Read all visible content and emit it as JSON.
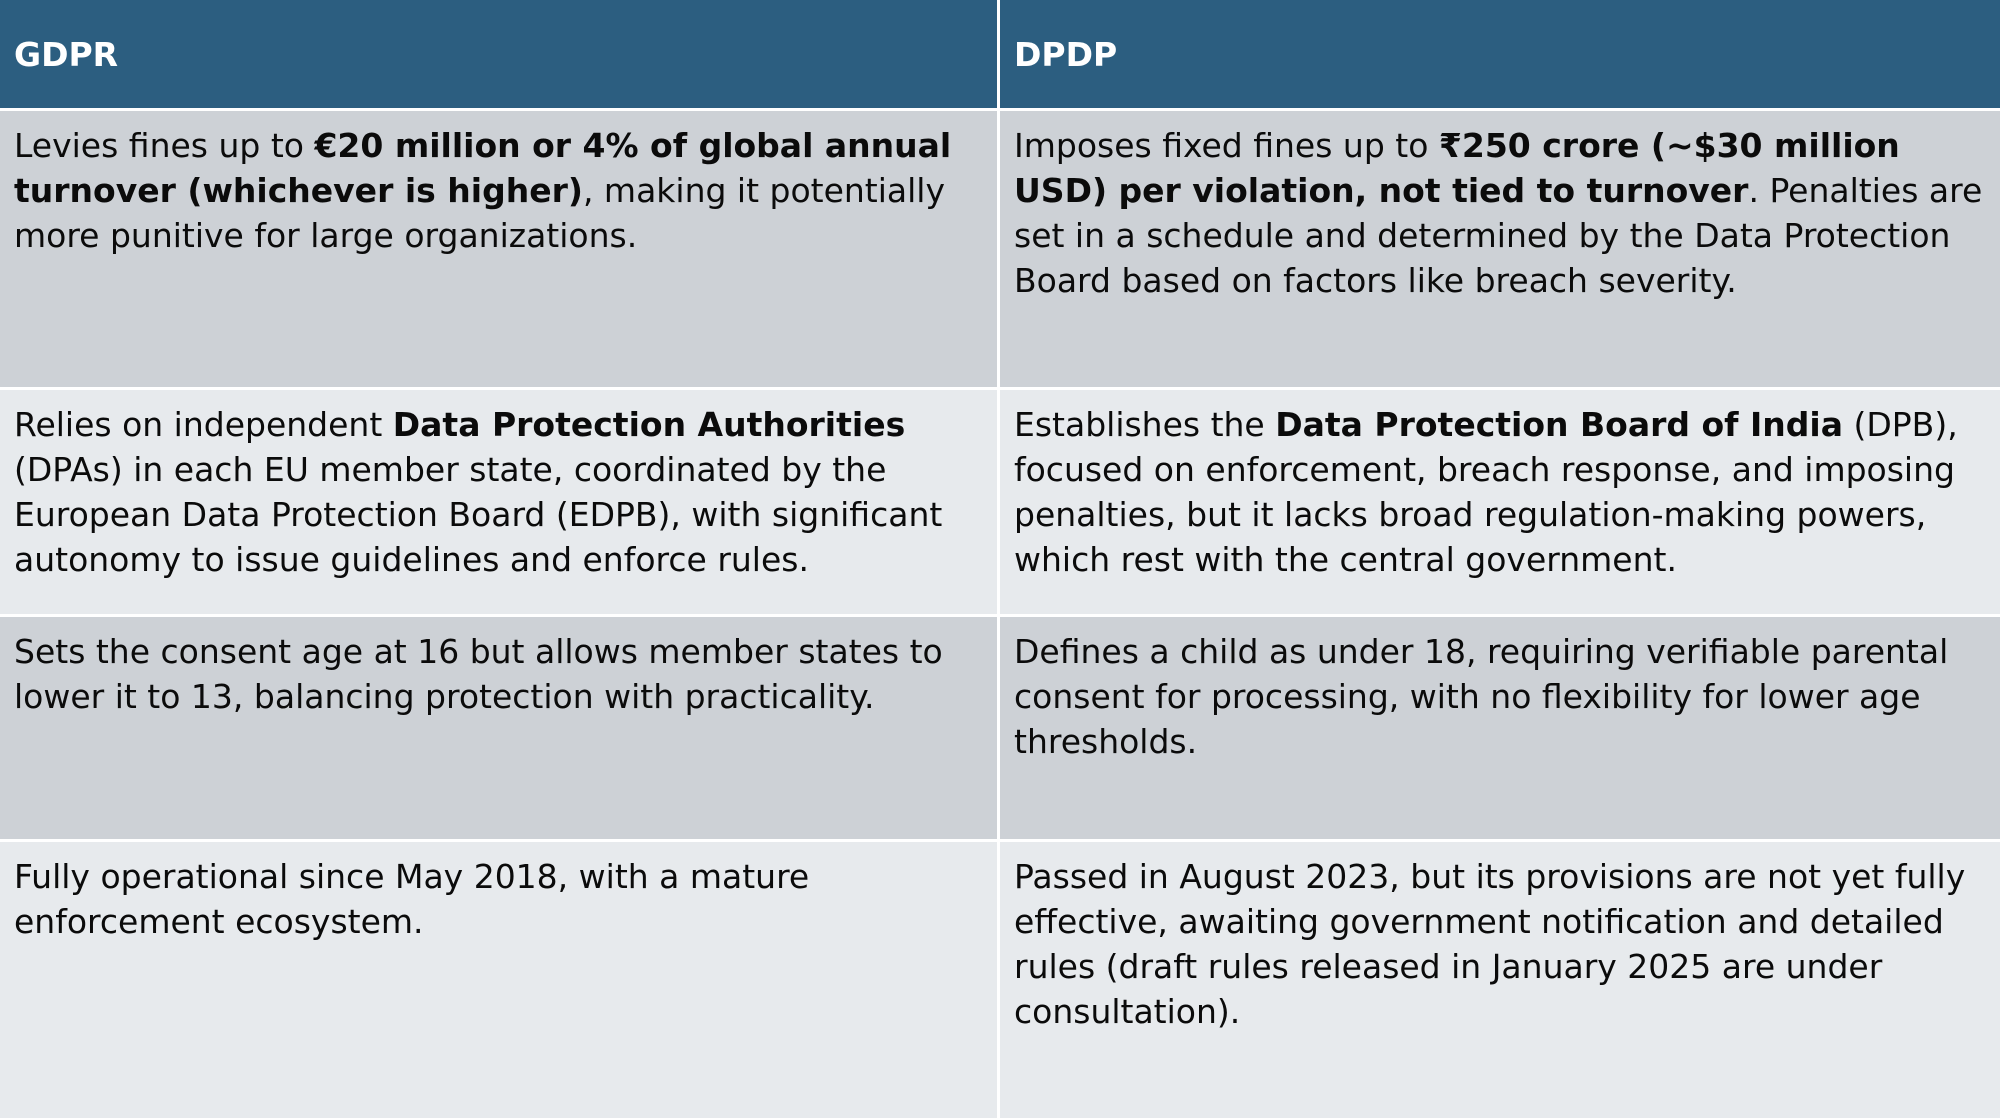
{
  "headers": {
    "gdpr": "GDPR",
    "dpdp": "DPDP"
  },
  "rows": [
    {
      "gdpr": {
        "s1": "Levies fines up to ",
        "b1": "€20 million or 4% of global annual turnover (whichever is higher)",
        "s2": ", making it potentially more punitive for large organizations."
      },
      "dpdp": {
        "s1": "Imposes fixed fines up to ",
        "b1": "₹250 crore (~$30 million USD) per violation, not tied to turnover",
        "s2": ". Penalties are set in a schedule and determined by the Data Protection Board based on factors like breach severity."
      }
    },
    {
      "gdpr": {
        "s1": "Relies on independent ",
        "b1": "Data Protection Authorities",
        "s2": " (DPAs) in each EU member state, coordinated by the European Data Protection Board (EDPB), with significant autonomy to issue guidelines and enforce rules."
      },
      "dpdp": {
        "s1": "Establishes the ",
        "b1": "Data Protection Board of India",
        "s2": " (DPB), focused on enforcement, breach response, and imposing penalties, but it lacks broad regulation-making powers, which rest with the central government."
      }
    },
    {
      "gdpr": {
        "s1": "Sets the consent age at 16 but allows member states to lower it to 13, balancing protection with practicality."
      },
      "dpdp": {
        "s1": "Defines a child as under 18, requiring verifiable parental consent for processing, with no flexibility for lower age thresholds."
      }
    },
    {
      "gdpr": {
        "s1": "Fully operational since May 2018, with a mature enforcement ecosystem."
      },
      "dpdp": {
        "s1": "Passed in August 2023, but its provisions are not yet fully effective, awaiting government notification and detailed rules (draft rules released in January 2025 are under consultation)."
      }
    }
  ]
}
